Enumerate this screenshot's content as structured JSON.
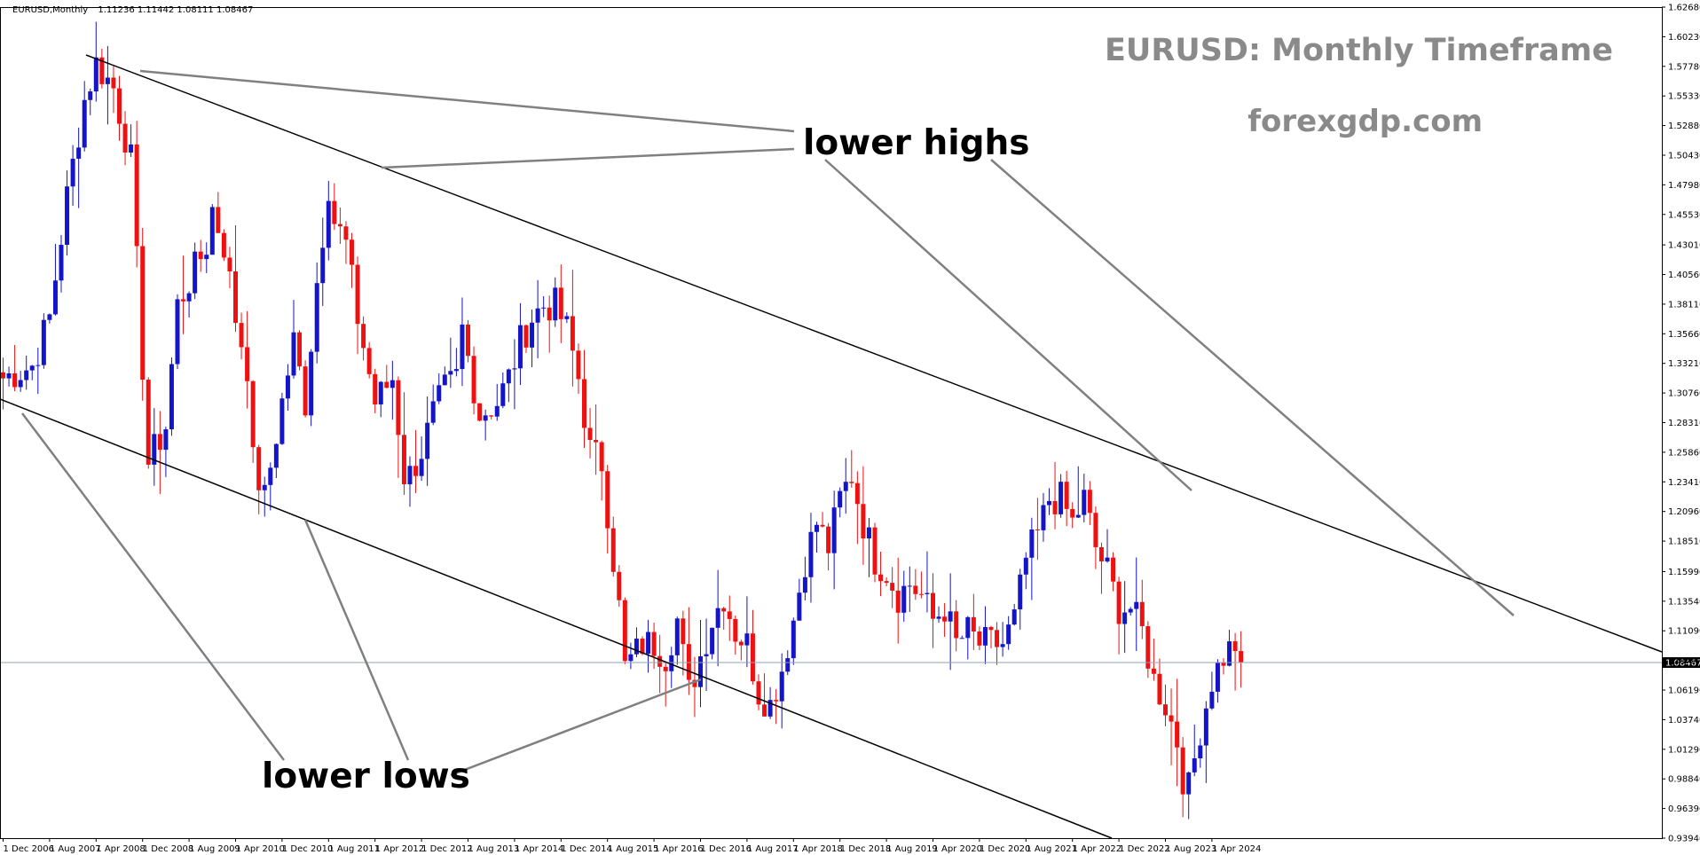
{
  "header": {
    "symbol": "EURUSD,Monthly",
    "ohlc": "1.11236 1.11442 1.08111 1.08467"
  },
  "title": "EURUSD: Monthly Timeframe",
  "subtitle": "forexgdp.com",
  "annotations": {
    "upper": "lower highs",
    "lower": "lower lows"
  },
  "colors": {
    "bull": "#1414c8",
    "bear": "#ee1111",
    "trendline": "#000000",
    "arrow": "#808080",
    "current_line": "#8fa3b3"
  },
  "chart_data": {
    "type": "candlestick",
    "title": "EURUSD: Monthly Timeframe",
    "ylim": [
      0.9394,
      1.6268
    ],
    "current_price": 1.08467,
    "current_price_label": "1.08467",
    "y_ticks": [
      "1.62680",
      "1.60230",
      "1.57780",
      "1.55330",
      "1.52880",
      "1.50430",
      "1.47980",
      "1.45530",
      "1.43010",
      "1.40560",
      "1.38110",
      "1.35660",
      "1.33210",
      "1.30760",
      "1.28310",
      "1.25860",
      "1.23410",
      "1.20960",
      "1.18510",
      "1.15990",
      "1.13540",
      "1.11090",
      "1.08640",
      "1.06190",
      "1.03740",
      "1.01290",
      "0.98840",
      "0.96390",
      "0.93940"
    ],
    "x_ticks": [
      "1 Dec 2006",
      "1 Aug 2007",
      "1 Apr 2008",
      "1 Dec 2008",
      "1 Aug 2009",
      "1 Apr 2010",
      "1 Dec 2010",
      "1 Aug 2011",
      "1 Apr 2012",
      "1 Dec 2012",
      "1 Aug 2013",
      "1 Apr 2014",
      "1 Dec 2014",
      "1 Aug 2015",
      "1 Apr 2016",
      "1 Dec 2016",
      "1 Aug 2017",
      "1 Apr 2018",
      "1 Dec 2018",
      "1 Aug 2019",
      "1 Apr 2020",
      "1 Dec 2020",
      "1 Aug 2021",
      "1 Apr 2022",
      "1 Dec 2022",
      "1 Aug 2023",
      "1 Apr 2024"
    ],
    "start": "Dec 2006",
    "end": "Sep 2024",
    "anchors": [
      [
        0,
        1.32
      ],
      [
        5,
        1.33
      ],
      [
        8,
        1.37
      ],
      [
        11,
        1.47
      ],
      [
        14,
        1.55
      ],
      [
        16,
        1.58
      ],
      [
        19,
        1.56
      ],
      [
        22,
        1.5
      ],
      [
        24,
        1.33
      ],
      [
        25,
        1.25
      ],
      [
        28,
        1.28
      ],
      [
        30,
        1.38
      ],
      [
        35,
        1.43
      ],
      [
        36,
        1.46
      ],
      [
        38,
        1.43
      ],
      [
        40,
        1.37
      ],
      [
        42,
        1.33
      ],
      [
        43,
        1.25
      ],
      [
        45,
        1.22
      ],
      [
        48,
        1.3
      ],
      [
        50,
        1.35
      ],
      [
        52,
        1.3
      ],
      [
        54,
        1.4
      ],
      [
        56,
        1.48
      ],
      [
        57,
        1.45
      ],
      [
        59,
        1.43
      ],
      [
        61,
        1.37
      ],
      [
        64,
        1.3
      ],
      [
        67,
        1.32
      ],
      [
        69,
        1.24
      ],
      [
        70,
        1.24
      ],
      [
        72,
        1.26
      ],
      [
        74,
        1.29
      ],
      [
        76,
        1.31
      ],
      [
        78,
        1.32
      ],
      [
        79,
        1.36
      ],
      [
        82,
        1.29
      ],
      [
        85,
        1.3
      ],
      [
        87,
        1.32
      ],
      [
        89,
        1.35
      ],
      [
        91,
        1.37
      ],
      [
        93,
        1.38
      ],
      [
        95,
        1.38
      ],
      [
        97,
        1.36
      ],
      [
        99,
        1.32
      ],
      [
        101,
        1.26
      ],
      [
        103,
        1.25
      ],
      [
        104,
        1.21
      ],
      [
        106,
        1.13
      ],
      [
        107,
        1.08
      ],
      [
        110,
        1.1
      ],
      [
        112,
        1.1
      ],
      [
        114,
        1.09
      ],
      [
        116,
        1.12
      ],
      [
        118,
        1.06
      ],
      [
        120,
        1.09
      ],
      [
        122,
        1.12
      ],
      [
        124,
        1.14
      ],
      [
        126,
        1.11
      ],
      [
        128,
        1.1
      ],
      [
        130,
        1.06
      ],
      [
        132,
        1.05
      ],
      [
        134,
        1.08
      ],
      [
        136,
        1.12
      ],
      [
        138,
        1.17
      ],
      [
        140,
        1.2
      ],
      [
        142,
        1.18
      ],
      [
        144,
        1.22
      ],
      [
        146,
        1.24
      ],
      [
        148,
        1.2
      ],
      [
        150,
        1.17
      ],
      [
        152,
        1.16
      ],
      [
        154,
        1.14
      ],
      [
        156,
        1.15
      ],
      [
        158,
        1.14
      ],
      [
        160,
        1.12
      ],
      [
        162,
        1.13
      ],
      [
        164,
        1.1
      ],
      [
        166,
        1.11
      ],
      [
        168,
        1.1
      ],
      [
        170,
        1.1
      ],
      [
        172,
        1.1
      ],
      [
        174,
        1.12
      ],
      [
        176,
        1.17
      ],
      [
        178,
        1.19
      ],
      [
        180,
        1.22
      ],
      [
        182,
        1.22
      ],
      [
        184,
        1.2
      ],
      [
        186,
        1.22
      ],
      [
        188,
        1.18
      ],
      [
        190,
        1.16
      ],
      [
        192,
        1.13
      ],
      [
        194,
        1.13
      ],
      [
        196,
        1.11
      ],
      [
        198,
        1.07
      ],
      [
        200,
        1.05
      ],
      [
        202,
        1.02
      ],
      [
        203,
        0.99
      ],
      [
        204,
        0.98
      ],
      [
        206,
        1.03
      ],
      [
        208,
        1.07
      ],
      [
        210,
        1.09
      ],
      [
        212,
        1.1
      ],
      [
        214,
        1.09
      ],
      [
        216,
        1.07
      ],
      [
        218,
        1.1
      ],
      [
        220,
        1.06
      ],
      [
        222,
        1.09
      ],
      [
        224,
        1.08
      ],
      [
        226,
        1.08
      ],
      [
        228,
        1.08
      ],
      [
        230,
        1.11
      ],
      [
        231,
        1.11
      ],
      [
        213,
        1.1
      ]
    ]
  }
}
